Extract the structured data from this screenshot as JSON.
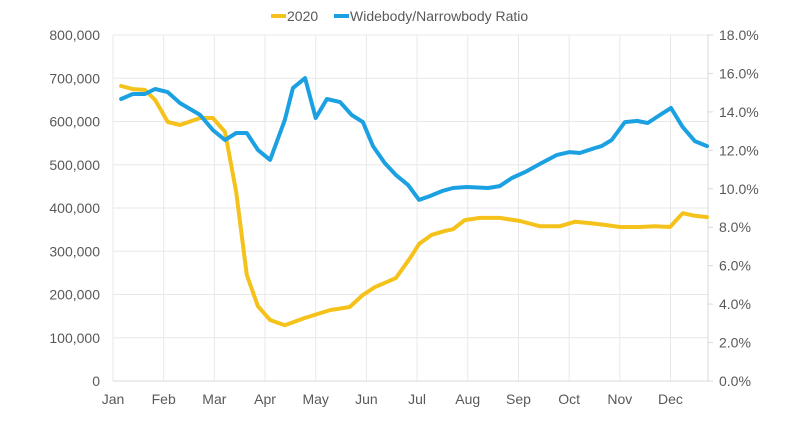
{
  "chart_data": {
    "type": "line",
    "title": "",
    "xlabel": "",
    "ylabel": "",
    "x_ticks": [
      "Jan",
      "Feb",
      "Mar",
      "Apr",
      "May",
      "Jun",
      "Jul",
      "Aug",
      "Sep",
      "Oct",
      "Nov",
      "Dec"
    ],
    "xlim": [
      0,
      11.74
    ],
    "y_left": {
      "ticks": [
        "0",
        "100,000",
        "200,000",
        "300,000",
        "400,000",
        "500,000",
        "600,000",
        "700,000",
        "800,000"
      ],
      "ylim": [
        0,
        800000
      ]
    },
    "y_right": {
      "ticks": [
        "0.0%",
        "2.0%",
        "4.0%",
        "6.0%",
        "8.0%",
        "10.0%",
        "12.0%",
        "14.0%",
        "16.0%",
        "18.0%"
      ],
      "ylim": [
        0,
        18
      ]
    },
    "grid": true,
    "legend_placement": "top-center",
    "series": [
      {
        "name": "2020",
        "axis": "left",
        "color": "#F5C21B",
        "x": [
          0.16,
          0.39,
          0.63,
          0.83,
          1.08,
          1.32,
          1.72,
          1.97,
          2.21,
          2.43,
          2.64,
          2.86,
          3.1,
          3.39,
          3.79,
          4.28,
          4.67,
          4.93,
          5.17,
          5.58,
          5.86,
          6.04,
          6.29,
          6.55,
          6.71,
          6.94,
          7.24,
          7.63,
          8.03,
          8.42,
          8.82,
          9.11,
          9.41,
          9.7,
          10.0,
          10.39,
          10.69,
          10.99,
          11.24,
          11.48,
          11.72
        ],
        "values": [
          682000,
          675000,
          673000,
          650000,
          599000,
          592000,
          608000,
          608000,
          576000,
          437000,
          245000,
          173000,
          141000,
          129000,
          146000,
          164000,
          171000,
          199000,
          217000,
          238000,
          284000,
          317000,
          338000,
          347000,
          351000,
          372000,
          377000,
          377000,
          370000,
          358000,
          358000,
          368000,
          365000,
          361000,
          356000,
          356000,
          358000,
          356000,
          388000,
          382000,
          379000
        ]
      },
      {
        "name": "Widebody/Narrowbody Ratio",
        "axis": "right",
        "color": "#1BA1E2",
        "x": [
          0.16,
          0.39,
          0.63,
          0.83,
          1.08,
          1.32,
          1.72,
          1.97,
          2.21,
          2.43,
          2.64,
          2.86,
          3.1,
          3.39,
          3.55,
          3.79,
          4.0,
          4.22,
          4.48,
          4.71,
          4.93,
          5.13,
          5.36,
          5.58,
          5.82,
          6.04,
          6.25,
          6.49,
          6.71,
          6.98,
          7.4,
          7.63,
          7.87,
          8.13,
          8.42,
          8.76,
          9.01,
          9.21,
          9.51,
          9.64,
          9.84,
          10.1,
          10.34,
          10.55,
          10.79,
          11.01,
          11.24,
          11.48,
          11.72
        ],
        "values": [
          14.67,
          14.93,
          14.93,
          15.19,
          15.03,
          14.46,
          13.84,
          13.06,
          12.54,
          12.9,
          12.9,
          12.02,
          11.5,
          13.58,
          15.24,
          15.76,
          13.68,
          14.67,
          14.51,
          13.84,
          13.47,
          12.22,
          11.34,
          10.72,
          10.2,
          9.42,
          9.62,
          9.88,
          10.04,
          10.09,
          10.04,
          10.14,
          10.56,
          10.87,
          11.29,
          11.76,
          11.91,
          11.86,
          12.12,
          12.22,
          12.54,
          13.47,
          13.53,
          13.42,
          13.84,
          14.2,
          13.21,
          12.48,
          12.22
        ]
      }
    ]
  }
}
